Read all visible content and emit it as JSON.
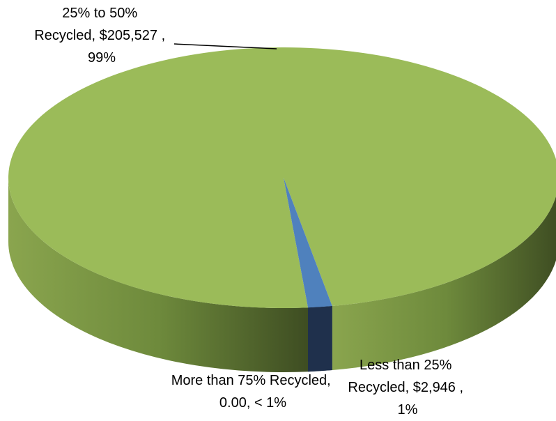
{
  "chart_data": {
    "type": "pie",
    "style": "3d",
    "slices": [
      {
        "category": "25% to 50% Recycled",
        "label_lines": [
          "25% to 50%",
          "Recycled, $205,527 ,",
          "99%"
        ],
        "value": 205527,
        "percent_label": "99%",
        "color": "#9BBB59"
      },
      {
        "category": "Less than 25% Recycled",
        "label_lines": [
          "Less than 25%",
          "Recycled, $2,946 ,",
          "1%"
        ],
        "value": 2946,
        "percent_label": "1%",
        "color": "#4F81BD"
      },
      {
        "category": "More than 75% Recycled",
        "label_lines": [
          "More than 75% Recycled,",
          "0.00, < 1%"
        ],
        "value": 0,
        "percent_label": "< 1%",
        "color": "#4F81BD"
      }
    ]
  }
}
